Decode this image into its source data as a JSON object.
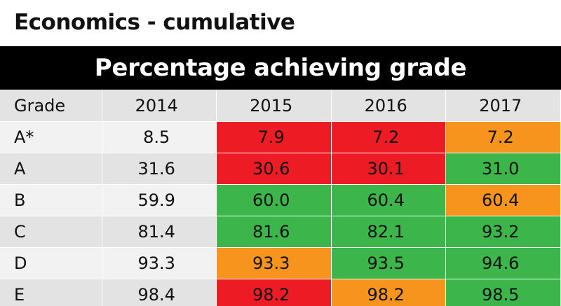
{
  "title": "Economics - cumulative",
  "banner": "Percentage achieving grade",
  "colors": {
    "red": "#ed1c24",
    "orange": "#f7941d",
    "green": "#3cb54a",
    "neutral_light": "#f2f2f2",
    "neutral_dark": "#e3e3e3"
  },
  "chart_data": {
    "type": "table",
    "title": "Percentage achieving grade",
    "columns": [
      "Grade",
      "2014",
      "2015",
      "2016",
      "2017"
    ],
    "rows": [
      {
        "grade": "A*",
        "values": [
          "8.5",
          "7.9",
          "7.2",
          "7.2"
        ],
        "colors": [
          "none",
          "red",
          "red",
          "orange"
        ]
      },
      {
        "grade": "A",
        "values": [
          "31.6",
          "30.6",
          "30.1",
          "31.0"
        ],
        "colors": [
          "none",
          "red",
          "red",
          "green"
        ]
      },
      {
        "grade": "B",
        "values": [
          "59.9",
          "60.0",
          "60.4",
          "60.4"
        ],
        "colors": [
          "none",
          "green",
          "green",
          "orange"
        ]
      },
      {
        "grade": "C",
        "values": [
          "81.4",
          "81.6",
          "82.1",
          "93.2"
        ],
        "colors": [
          "none",
          "green",
          "green",
          "green"
        ]
      },
      {
        "grade": "D",
        "values": [
          "93.3",
          "93.3",
          "93.5",
          "94.6"
        ],
        "colors": [
          "none",
          "orange",
          "green",
          "green"
        ]
      },
      {
        "grade": "E",
        "values": [
          "98.4",
          "98.2",
          "98.2",
          "98.5"
        ],
        "colors": [
          "none",
          "red",
          "orange",
          "green"
        ]
      }
    ]
  }
}
